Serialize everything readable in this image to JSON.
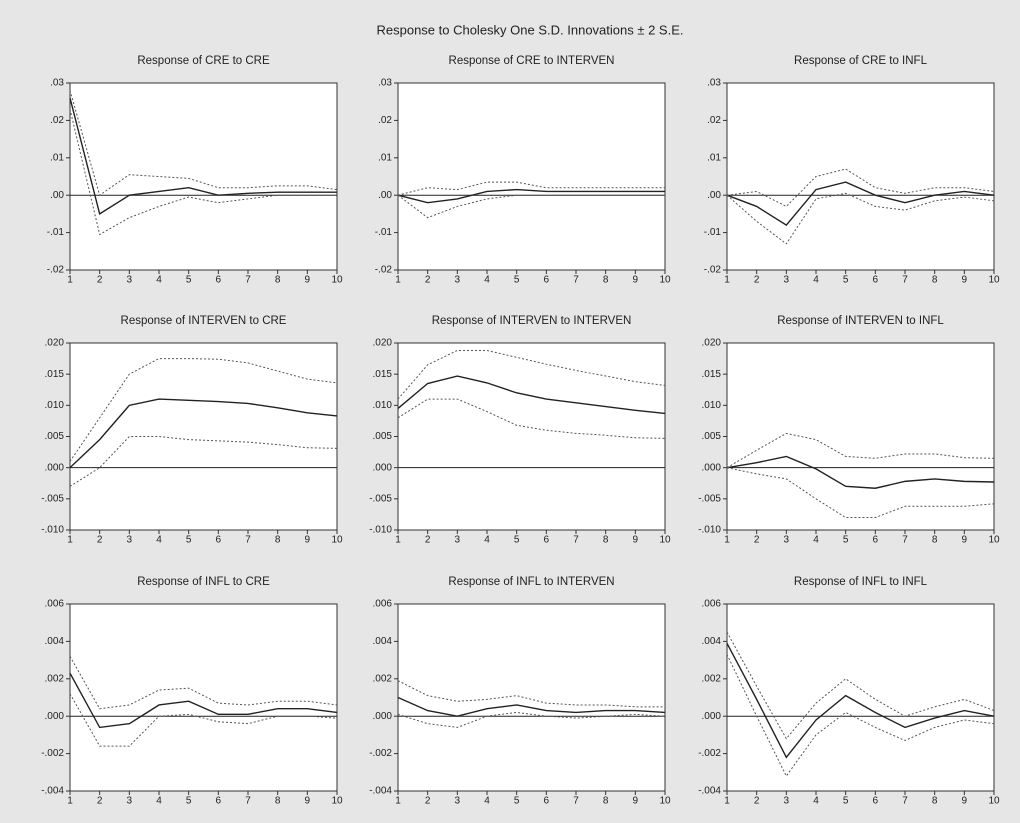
{
  "title": "Response to Cholesky One S.D. Innovations ± 2 S.E.",
  "chart_data": [
    {
      "type": "line",
      "title": "Response of CRE to CRE",
      "x": [
        1,
        2,
        3,
        4,
        5,
        6,
        7,
        8,
        9,
        10
      ],
      "xlim": [
        1,
        10
      ],
      "xticks": [
        1,
        2,
        3,
        4,
        5,
        6,
        7,
        8,
        9,
        10
      ],
      "ylim": [
        -0.02,
        0.03
      ],
      "yticks": [
        {
          "value": -0.02,
          "label": "-.02"
        },
        {
          "value": -0.01,
          "label": "-.01"
        },
        {
          "value": 0,
          "label": ".00"
        },
        {
          "value": 0.01,
          "label": ".01"
        },
        {
          "value": 0.02,
          "label": ".02"
        },
        {
          "value": 0.03,
          "label": ".03"
        }
      ],
      "series": [
        {
          "color": "#222222",
          "dashed": false,
          "values": [
            0.026,
            -0.005,
            0.0,
            0.001,
            0.002,
            0.0,
            0.0005,
            0.0008,
            0.0008,
            0.0008
          ]
        },
        {
          "color": "#555555",
          "dashed": true,
          "values": [
            0.028,
            0.0,
            0.0055,
            0.005,
            0.0045,
            0.002,
            0.002,
            0.0025,
            0.0025,
            0.0015
          ]
        },
        {
          "color": "#555555",
          "dashed": true,
          "values": [
            0.023,
            -0.0105,
            -0.006,
            -0.003,
            -0.0005,
            -0.002,
            -0.001,
            0.0,
            0.0,
            0.0
          ]
        }
      ]
    },
    {
      "type": "line",
      "title": "Response of CRE to INTERVEN",
      "x": [
        1,
        2,
        3,
        4,
        5,
        6,
        7,
        8,
        9,
        10
      ],
      "xlim": [
        1,
        10
      ],
      "xticks": [
        1,
        2,
        3,
        4,
        5,
        6,
        7,
        8,
        9,
        10
      ],
      "ylim": [
        -0.02,
        0.03
      ],
      "yticks": [
        {
          "value": -0.02,
          "label": "-.02"
        },
        {
          "value": -0.01,
          "label": "-.01"
        },
        {
          "value": 0,
          "label": ".00"
        },
        {
          "value": 0.01,
          "label": ".01"
        },
        {
          "value": 0.02,
          "label": ".02"
        },
        {
          "value": 0.03,
          "label": ".03"
        }
      ],
      "series": [
        {
          "color": "#222222",
          "dashed": false,
          "values": [
            0.0,
            -0.002,
            -0.001,
            0.001,
            0.0015,
            0.001,
            0.001,
            0.001,
            0.001,
            0.001
          ]
        },
        {
          "color": "#555555",
          "dashed": true,
          "values": [
            0.0,
            0.002,
            0.0015,
            0.0035,
            0.0035,
            0.002,
            0.002,
            0.002,
            0.002,
            0.002
          ]
        },
        {
          "color": "#555555",
          "dashed": true,
          "values": [
            0.0,
            -0.006,
            -0.003,
            -0.001,
            0.0,
            0.0,
            0.0,
            0.0,
            0.0,
            0.0
          ]
        }
      ]
    },
    {
      "type": "line",
      "title": "Response of CRE to INFL",
      "x": [
        1,
        2,
        3,
        4,
        5,
        6,
        7,
        8,
        9,
        10
      ],
      "xlim": [
        1,
        10
      ],
      "xticks": [
        1,
        2,
        3,
        4,
        5,
        6,
        7,
        8,
        9,
        10
      ],
      "ylim": [
        -0.02,
        0.03
      ],
      "yticks": [
        {
          "value": -0.02,
          "label": "-.02"
        },
        {
          "value": -0.01,
          "label": "-.01"
        },
        {
          "value": 0,
          "label": ".00"
        },
        {
          "value": 0.01,
          "label": ".01"
        },
        {
          "value": 0.02,
          "label": ".02"
        },
        {
          "value": 0.03,
          "label": ".03"
        }
      ],
      "series": [
        {
          "color": "#222222",
          "dashed": false,
          "values": [
            0.0,
            -0.003,
            -0.008,
            0.0015,
            0.0035,
            0.0,
            -0.002,
            0.0,
            0.001,
            0.0
          ]
        },
        {
          "color": "#555555",
          "dashed": true,
          "values": [
            0.0,
            0.001,
            -0.003,
            0.005,
            0.007,
            0.002,
            0.0005,
            0.002,
            0.002,
            0.001
          ]
        },
        {
          "color": "#555555",
          "dashed": true,
          "values": [
            0.0,
            -0.007,
            -0.013,
            -0.001,
            0.0005,
            -0.003,
            -0.004,
            -0.0015,
            -0.0005,
            -0.0015
          ]
        }
      ]
    },
    {
      "type": "line",
      "title": "Response of INTERVEN to CRE",
      "x": [
        1,
        2,
        3,
        4,
        5,
        6,
        7,
        8,
        9,
        10
      ],
      "xlim": [
        1,
        10
      ],
      "xticks": [
        1,
        2,
        3,
        4,
        5,
        6,
        7,
        8,
        9,
        10
      ],
      "ylim": [
        -0.01,
        0.02
      ],
      "yticks": [
        {
          "value": -0.01,
          "label": "-.010"
        },
        {
          "value": -0.005,
          "label": "-.005"
        },
        {
          "value": 0,
          "label": ".000"
        },
        {
          "value": 0.005,
          "label": ".005"
        },
        {
          "value": 0.01,
          "label": ".010"
        },
        {
          "value": 0.015,
          "label": ".015"
        },
        {
          "value": 0.02,
          "label": ".020"
        }
      ],
      "series": [
        {
          "color": "#222222",
          "dashed": false,
          "values": [
            0.0,
            0.0045,
            0.01,
            0.011,
            0.0108,
            0.0106,
            0.0103,
            0.0096,
            0.0088,
            0.0083
          ]
        },
        {
          "color": "#555555",
          "dashed": true,
          "values": [
            0.001,
            0.008,
            0.015,
            0.0175,
            0.0175,
            0.0174,
            0.0168,
            0.0155,
            0.0142,
            0.0136
          ]
        },
        {
          "color": "#555555",
          "dashed": true,
          "values": [
            -0.003,
            0.0,
            0.005,
            0.005,
            0.0045,
            0.0043,
            0.0041,
            0.0037,
            0.0032,
            0.0031
          ]
        }
      ]
    },
    {
      "type": "line",
      "title": "Response of INTERVEN to INTERVEN",
      "x": [
        1,
        2,
        3,
        4,
        5,
        6,
        7,
        8,
        9,
        10
      ],
      "xlim": [
        1,
        10
      ],
      "xticks": [
        1,
        2,
        3,
        4,
        5,
        6,
        7,
        8,
        9,
        10
      ],
      "ylim": [
        -0.01,
        0.02
      ],
      "yticks": [
        {
          "value": -0.01,
          "label": "-.010"
        },
        {
          "value": -0.005,
          "label": "-.005"
        },
        {
          "value": 0,
          "label": ".000"
        },
        {
          "value": 0.005,
          "label": ".005"
        },
        {
          "value": 0.01,
          "label": ".010"
        },
        {
          "value": 0.015,
          "label": ".015"
        },
        {
          "value": 0.02,
          "label": ".020"
        }
      ],
      "series": [
        {
          "color": "#222222",
          "dashed": false,
          "values": [
            0.0095,
            0.0135,
            0.0147,
            0.0136,
            0.012,
            0.011,
            0.0104,
            0.0098,
            0.0092,
            0.0087
          ]
        },
        {
          "color": "#555555",
          "dashed": true,
          "values": [
            0.011,
            0.0165,
            0.0188,
            0.0188,
            0.0177,
            0.0166,
            0.0156,
            0.0147,
            0.0138,
            0.0132
          ]
        },
        {
          "color": "#555555",
          "dashed": true,
          "values": [
            0.008,
            0.011,
            0.011,
            0.009,
            0.0068,
            0.006,
            0.0055,
            0.0052,
            0.0048,
            0.0047
          ]
        }
      ]
    },
    {
      "type": "line",
      "title": "Response of INTERVEN to INFL",
      "x": [
        1,
        2,
        3,
        4,
        5,
        6,
        7,
        8,
        9,
        10
      ],
      "xlim": [
        1,
        10
      ],
      "xticks": [
        1,
        2,
        3,
        4,
        5,
        6,
        7,
        8,
        9,
        10
      ],
      "ylim": [
        -0.01,
        0.02
      ],
      "yticks": [
        {
          "value": -0.01,
          "label": "-.010"
        },
        {
          "value": -0.005,
          "label": "-.005"
        },
        {
          "value": 0,
          "label": ".000"
        },
        {
          "value": 0.005,
          "label": ".005"
        },
        {
          "value": 0.01,
          "label": ".010"
        },
        {
          "value": 0.015,
          "label": ".015"
        },
        {
          "value": 0.02,
          "label": ".020"
        }
      ],
      "series": [
        {
          "color": "#222222",
          "dashed": false,
          "values": [
            0.0,
            0.0008,
            0.0018,
            -0.0002,
            -0.003,
            -0.0033,
            -0.0022,
            -0.0018,
            -0.0022,
            -0.0023
          ]
        },
        {
          "color": "#555555",
          "dashed": true,
          "values": [
            0.0,
            0.0028,
            0.0055,
            0.0045,
            0.0018,
            0.0015,
            0.0022,
            0.0022,
            0.0016,
            0.0015
          ]
        },
        {
          "color": "#555555",
          "dashed": true,
          "values": [
            0.0,
            -0.001,
            -0.0018,
            -0.005,
            -0.008,
            -0.008,
            -0.0062,
            -0.0062,
            -0.0062,
            -0.0058
          ]
        }
      ]
    },
    {
      "type": "line",
      "title": "Response of INFL to CRE",
      "x": [
        1,
        2,
        3,
        4,
        5,
        6,
        7,
        8,
        9,
        10
      ],
      "xlim": [
        1,
        10
      ],
      "xticks": [
        1,
        2,
        3,
        4,
        5,
        6,
        7,
        8,
        9,
        10
      ],
      "ylim": [
        -0.004,
        0.006
      ],
      "yticks": [
        {
          "value": -0.004,
          "label": "-.004"
        },
        {
          "value": -0.002,
          "label": "-.002"
        },
        {
          "value": 0,
          "label": ".000"
        },
        {
          "value": 0.002,
          "label": ".002"
        },
        {
          "value": 0.004,
          "label": ".004"
        },
        {
          "value": 0.006,
          "label": ".006"
        }
      ],
      "series": [
        {
          "color": "#222222",
          "dashed": false,
          "values": [
            0.0023,
            -0.0006,
            -0.0004,
            0.0006,
            0.0008,
            0.0001,
            0.0001,
            0.0004,
            0.0004,
            0.0002
          ]
        },
        {
          "color": "#555555",
          "dashed": true,
          "values": [
            0.0032,
            0.0004,
            0.0006,
            0.0014,
            0.0015,
            0.0007,
            0.0006,
            0.0008,
            0.0008,
            0.0006
          ]
        },
        {
          "color": "#555555",
          "dashed": true,
          "values": [
            0.0012,
            -0.0016,
            -0.0016,
            0.0,
            0.0001,
            -0.0003,
            -0.0004,
            0.0,
            0.0,
            -0.0001
          ]
        }
      ]
    },
    {
      "type": "line",
      "title": "Response of INFL to INTERVEN",
      "x": [
        1,
        2,
        3,
        4,
        5,
        6,
        7,
        8,
        9,
        10
      ],
      "xlim": [
        1,
        10
      ],
      "xticks": [
        1,
        2,
        3,
        4,
        5,
        6,
        7,
        8,
        9,
        10
      ],
      "ylim": [
        -0.004,
        0.006
      ],
      "yticks": [
        {
          "value": -0.004,
          "label": "-.004"
        },
        {
          "value": -0.002,
          "label": "-.002"
        },
        {
          "value": 0,
          "label": ".000"
        },
        {
          "value": 0.002,
          "label": ".002"
        },
        {
          "value": 0.004,
          "label": ".004"
        },
        {
          "value": 0.006,
          "label": ".006"
        }
      ],
      "series": [
        {
          "color": "#222222",
          "dashed": false,
          "values": [
            0.001,
            0.0003,
            0.0,
            0.0004,
            0.0006,
            0.0003,
            0.0002,
            0.0003,
            0.0003,
            0.0002
          ]
        },
        {
          "color": "#555555",
          "dashed": true,
          "values": [
            0.0019,
            0.0011,
            0.0008,
            0.0009,
            0.0011,
            0.0007,
            0.0006,
            0.0006,
            0.0005,
            0.0005
          ]
        },
        {
          "color": "#555555",
          "dashed": true,
          "values": [
            0.0001,
            -0.0004,
            -0.0006,
            0.0,
            0.0002,
            0.0,
            -0.0001,
            0.0,
            0.0001,
            0.0
          ]
        }
      ]
    },
    {
      "type": "line",
      "title": "Response of INFL to INFL",
      "x": [
        1,
        2,
        3,
        4,
        5,
        6,
        7,
        8,
        9,
        10
      ],
      "xlim": [
        1,
        10
      ],
      "xticks": [
        1,
        2,
        3,
        4,
        5,
        6,
        7,
        8,
        9,
        10
      ],
      "ylim": [
        -0.004,
        0.006
      ],
      "yticks": [
        {
          "value": -0.004,
          "label": "-.004"
        },
        {
          "value": -0.002,
          "label": "-.002"
        },
        {
          "value": 0,
          "label": ".000"
        },
        {
          "value": 0.002,
          "label": ".002"
        },
        {
          "value": 0.004,
          "label": ".004"
        },
        {
          "value": 0.006,
          "label": ".006"
        }
      ],
      "series": [
        {
          "color": "#222222",
          "dashed": false,
          "values": [
            0.0039,
            0.0009,
            -0.0022,
            -0.0002,
            0.0011,
            0.0002,
            -0.0006,
            -0.0001,
            0.0003,
            0.0
          ]
        },
        {
          "color": "#555555",
          "dashed": true,
          "values": [
            0.0045,
            0.0016,
            -0.0012,
            0.0007,
            0.002,
            0.0009,
            0.0,
            0.0005,
            0.0009,
            0.0003
          ]
        },
        {
          "color": "#555555",
          "dashed": true,
          "values": [
            0.0033,
            0.0,
            -0.0032,
            -0.001,
            0.0002,
            -0.0006,
            -0.0013,
            -0.0006,
            -0.0002,
            -0.0004
          ]
        }
      ]
    }
  ]
}
